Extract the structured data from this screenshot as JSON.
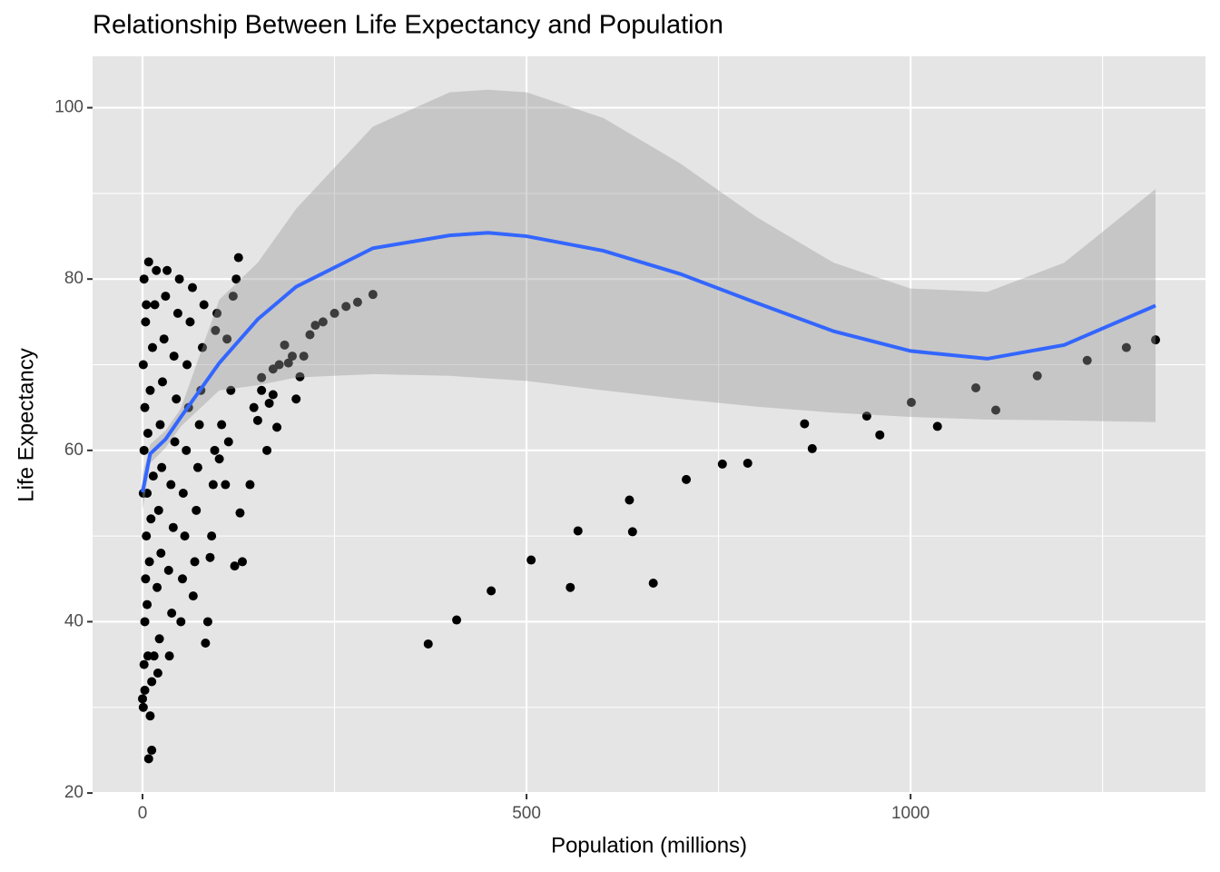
{
  "chart_data": {
    "type": "scatter",
    "title": "Relationship Between Life Expectancy and Population",
    "x_label": "Population (millions)",
    "y_label": "Life Expectancy",
    "xlim": [
      -65,
      1384
    ],
    "ylim": [
      19.9,
      106.0
    ],
    "xticks": [
      0,
      500,
      1000
    ],
    "yticks": [
      20,
      40,
      60,
      80,
      100
    ],
    "xminor": [
      250,
      750,
      1250
    ],
    "yminor": [
      30,
      50,
      70,
      90
    ],
    "grid": true,
    "panel_color": "#e5e5e5",
    "color": "#000000",
    "x": [
      1,
      2,
      3,
      4,
      5,
      6,
      2,
      3,
      1,
      4,
      2,
      8,
      10,
      8,
      12,
      15,
      6,
      9,
      11,
      14,
      7,
      10,
      13,
      16,
      18,
      20,
      22,
      19,
      24,
      21,
      25,
      23,
      26,
      28,
      30,
      32,
      35,
      38,
      34,
      40,
      37,
      42,
      44,
      41,
      46,
      48,
      50,
      52,
      55,
      53,
      57,
      60,
      58,
      62,
      65,
      66,
      68,
      70,
      72,
      74,
      76,
      78,
      80,
      82,
      85,
      88,
      90,
      92,
      94,
      95,
      97,
      100,
      103,
      108,
      110,
      112,
      115,
      118,
      120,
      122,
      125,
      127,
      130,
      140,
      145,
      150,
      155,
      162,
      165,
      170,
      175,
      178,
      185,
      195,
      200,
      205,
      210,
      218,
      225,
      235,
      250,
      265,
      280,
      300,
      155,
      170,
      190,
      12,
      3,
      5,
      0,
      1,
      7,
      372,
      409,
      454,
      506,
      557,
      567,
      634,
      638,
      665,
      708,
      755,
      788,
      862,
      872,
      943,
      960,
      1001,
      1035,
      1085,
      1111,
      1165,
      1230,
      1281,
      1319
    ],
    "values": [
      30,
      35,
      40,
      45,
      50,
      55,
      60,
      65,
      70,
      75,
      80,
      82,
      29,
      24,
      33,
      36,
      42,
      47,
      52,
      57,
      62,
      67,
      72,
      77,
      81,
      34,
      38,
      44,
      48,
      53,
      58,
      63,
      68,
      73,
      78,
      81,
      36,
      41,
      46,
      51,
      56,
      61,
      66,
      71,
      76,
      80,
      40,
      45,
      50,
      55,
      60,
      65,
      70,
      75,
      79,
      43,
      47,
      53,
      58,
      63,
      67,
      72,
      77,
      37.5,
      40,
      47.5,
      50,
      56,
      60,
      74,
      76,
      59,
      63,
      56,
      73,
      61,
      67,
      78,
      46.5,
      80,
      82.5,
      52.7,
      47,
      56,
      65,
      63.5,
      67,
      60,
      65.5,
      66.5,
      62.7,
      70,
      72.3,
      71,
      66,
      68.6,
      71,
      73.5,
      74.6,
      75,
      76,
      76.8,
      77.3,
      78.2,
      68.5,
      69.5,
      70.2,
      25,
      32,
      77,
      31,
      55,
      36,
      37.4,
      40.2,
      43.6,
      47.2,
      44.0,
      50.6,
      54.2,
      50.5,
      44.5,
      56.6,
      58.4,
      58.5,
      63.1,
      60.2,
      64.0,
      61.8,
      65.6,
      62.8,
      67.3,
      64.7,
      68.7,
      70.5,
      72.0,
      72.9
    ],
    "smooth": {
      "color": "#3366ff",
      "band_color": "#999999",
      "x": [
        0,
        10,
        30,
        50,
        100,
        150,
        200,
        300,
        400,
        450,
        500,
        600,
        700,
        800,
        900,
        1000,
        1100,
        1200,
        1319
      ],
      "y": [
        55.1,
        59.6,
        61.3,
        63.9,
        70.2,
        75.3,
        79.1,
        83.6,
        85.1,
        85.4,
        85.0,
        83.3,
        80.6,
        77.2,
        73.9,
        71.6,
        70.7,
        72.3,
        76.9
      ],
      "ymin": [
        53.0,
        58.5,
        60.3,
        62.8,
        67.0,
        67.6,
        68.5,
        68.9,
        68.7,
        68.4,
        68.1,
        67.0,
        66.0,
        65.1,
        64.4,
        63.9,
        63.6,
        63.5,
        63.3
      ],
      "ymax": [
        57.2,
        60.7,
        62.3,
        64.9,
        77.6,
        81.9,
        88.2,
        97.8,
        101.8,
        102.1,
        101.8,
        98.8,
        93.5,
        87.2,
        81.9,
        78.9,
        78.5,
        81.9,
        90.5
      ]
    }
  }
}
